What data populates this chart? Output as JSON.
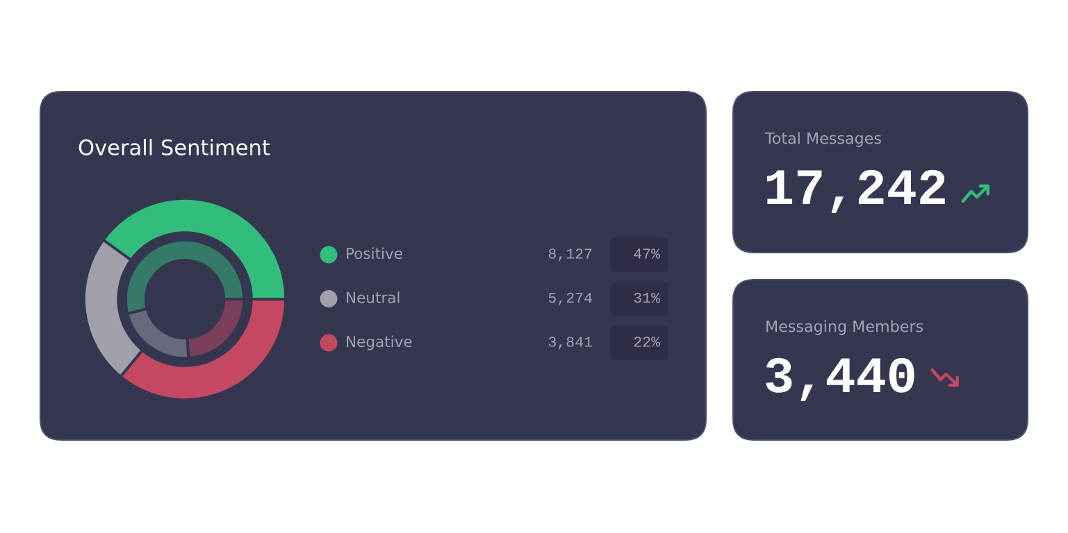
{
  "chart_data": [
    {
      "type": "donut",
      "title": "Overall Sentiment",
      "categories": [
        "Positive",
        "Neutral",
        "Negative"
      ],
      "series": [
        {
          "colors": [
            "#33bd7c",
            "#a0a0aa",
            "#c44862"
          ],
          "values": [
            40,
            24,
            36
          ]
        },
        {
          "colors": [
            "#357a68",
            "#686a7c",
            "#7a3f5a"
          ],
          "values": [
            54,
            22,
            24
          ]
        }
      ],
      "legend": "right",
      "annotations": [
        "8,127",
        "47%",
        "5,274",
        "31%",
        "3,841",
        "22%"
      ]
    },
    {
      "type": "other",
      "title": "Total Messages",
      "annotations": [
        "17,242"
      ],
      "color": "#33bd7c"
    },
    {
      "type": "other",
      "title": "Messaging Members",
      "annotations": [
        "3,440"
      ],
      "color": "#c44862"
    }
  ]
}
